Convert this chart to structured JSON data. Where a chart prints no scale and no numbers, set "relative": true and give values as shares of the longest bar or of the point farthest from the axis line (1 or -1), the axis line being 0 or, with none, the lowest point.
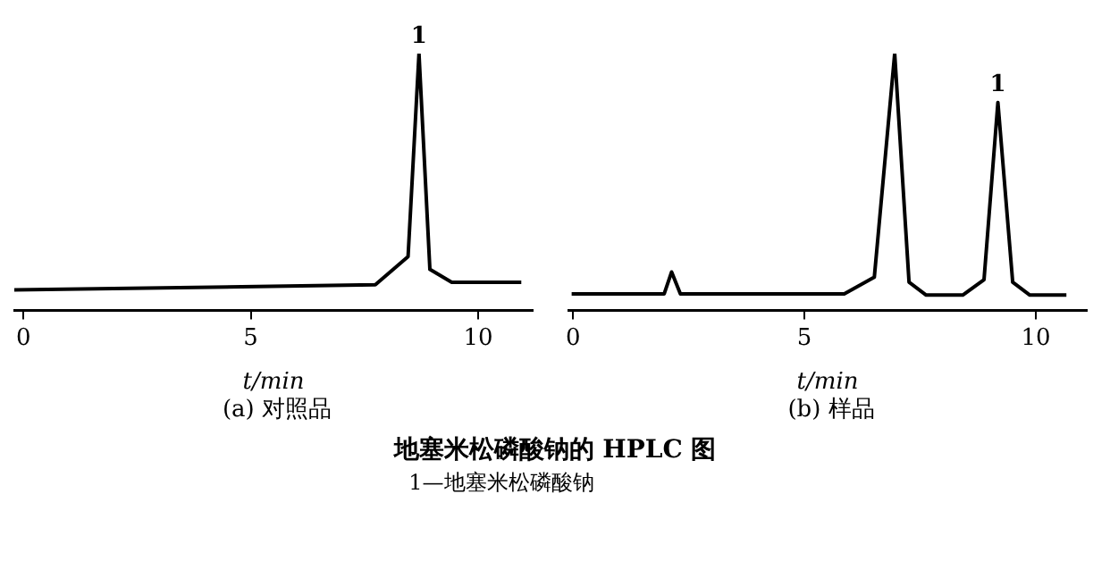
{
  "chart_data": [
    {
      "type": "line",
      "relative": true,
      "xlabel": "t/min",
      "xlim": [
        -0.2,
        11.2
      ],
      "xticks": [
        0,
        5,
        10
      ],
      "series": [
        {
          "color": "#000000",
          "x": [
            -0.2,
            7.74,
            8.46,
            8.7,
            8.94,
            9.42,
            10.95
          ],
          "values": [
            0.08,
            0.1,
            0.21,
            1,
            0.16,
            0.11,
            0.11
          ]
        }
      ],
      "annotations": [
        {
          "text": "1",
          "x": 8.7,
          "y": 1
        },
        "(a) 对照品"
      ]
    },
    {
      "type": "line",
      "relative": true,
      "xlabel": "t/min",
      "xlim": [
        -0.1,
        11.1
      ],
      "xticks": [
        0,
        5,
        10
      ],
      "series": [
        {
          "color": "#000000",
          "x": [
            -0.03,
            1.97,
            2.13,
            2.32,
            5.86,
            6.51,
            6.95,
            7.26,
            7.63,
            8.42,
            8.88,
            9.18,
            9.5,
            9.87,
            10.66
          ],
          "values": [
            0.065,
            0.065,
            0.15,
            0.065,
            0.065,
            0.13,
            1,
            0.11,
            0.06,
            0.06,
            0.12,
            0.81,
            0.11,
            0.06,
            0.06
          ]
        }
      ],
      "annotations": [
        {
          "text": "1",
          "x": 9.18,
          "y": 0.81
        },
        "(b) 样品"
      ]
    },
    {
      "type": "other",
      "title": "地塞米松磷酸钠的 HPLC 图",
      "annotations": [
        "1—地塞米松磷酸钠"
      ]
    }
  ]
}
